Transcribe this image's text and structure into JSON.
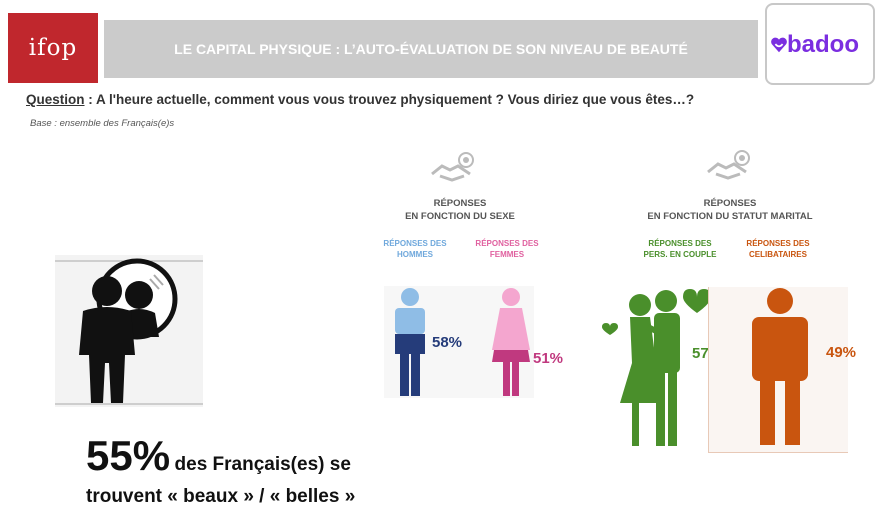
{
  "header": {
    "ifop_logo_text": "ifop",
    "title": "LE CAPITAL PHYSIQUE : L’AUTO-ÉVALUATION DE SON NIVEAU DE BEAUTÉ",
    "badoo_logo_text": "badoo"
  },
  "question": {
    "label": "Question",
    "text": ": A l'heure actuelle, comment vous vous trouvez physiquement ? Vous diriez que vous êtes…?",
    "base": "Base : ensemble des Français(e)s"
  },
  "sexe": {
    "title_line1": "RÉPONSES",
    "title_line2": "EN FONCTION DU SEXE",
    "men_label_line1": "RÉPONSES DES",
    "men_label_line2": "HOMMES",
    "men_pct": "58%",
    "women_label_line1": "RÉPONSES DES",
    "women_label_line2": "FEMMES",
    "women_pct": "51%"
  },
  "marital": {
    "title_line1": "RÉPONSES",
    "title_line2": "EN FONCTION DU STATUT MARITAL",
    "couple_label_line1": "RÉPONSES DES",
    "couple_label_line2": "PERS. EN COUPLE",
    "couple_pct": "57%",
    "single_label_line1": "RÉPONSES DES",
    "single_label_line2": "CELIBATAIRES",
    "single_pct": "49%"
  },
  "summary": {
    "pct": "55%",
    "line1": "des Français(es) se",
    "line2": "trouvent « beaux » / « belles »"
  },
  "colors": {
    "ifop_red": "#c0272d",
    "title_grey": "#cbcbcb",
    "badoo_purple": "#7b2ee0",
    "men_light": "#8fbde6",
    "men_dark": "#253c7a",
    "women_light": "#f4a6cf",
    "women_dark": "#c0397f",
    "couple_green": "#4a8f2b",
    "single_orange": "#c9550f"
  }
}
